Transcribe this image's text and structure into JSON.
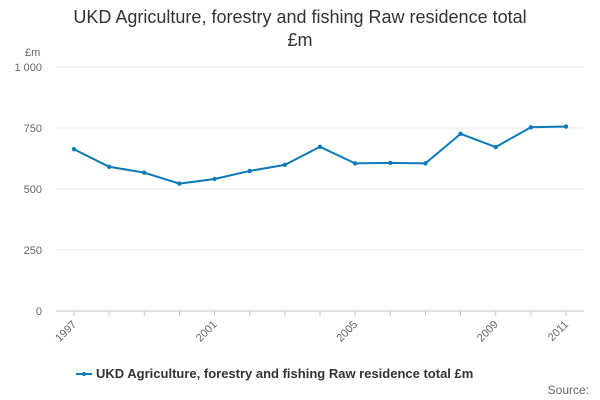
{
  "chart_data": {
    "type": "line",
    "title_lines": [
      "UKD Agriculture, forestry and fishing Raw residence total",
      "£m"
    ],
    "ylabel": "£m",
    "ylim": [
      0,
      1000
    ],
    "yticks": [
      0,
      250,
      500,
      750,
      1000
    ],
    "ytick_labels": [
      "0",
      "250",
      "500",
      "750",
      "1 000"
    ],
    "x": [
      1997,
      1998,
      1999,
      2000,
      2001,
      2002,
      2003,
      2004,
      2005,
      2006,
      2007,
      2008,
      2009,
      2010,
      2011
    ],
    "xtick_labels": [
      "1997",
      "2001",
      "2005",
      "2009",
      "2011"
    ],
    "xticks": [
      1997,
      2001,
      2005,
      2009,
      2011
    ],
    "series": [
      {
        "name": "UKD Agriculture, forestry and fishing Raw residence total £m",
        "color": "#0b7ab8",
        "values": [
          663,
          591,
          567,
          522,
          541,
          574,
          599,
          673,
          605,
          607,
          605,
          726,
          672,
          753,
          756
        ]
      }
    ],
    "source_label": "Source:"
  }
}
